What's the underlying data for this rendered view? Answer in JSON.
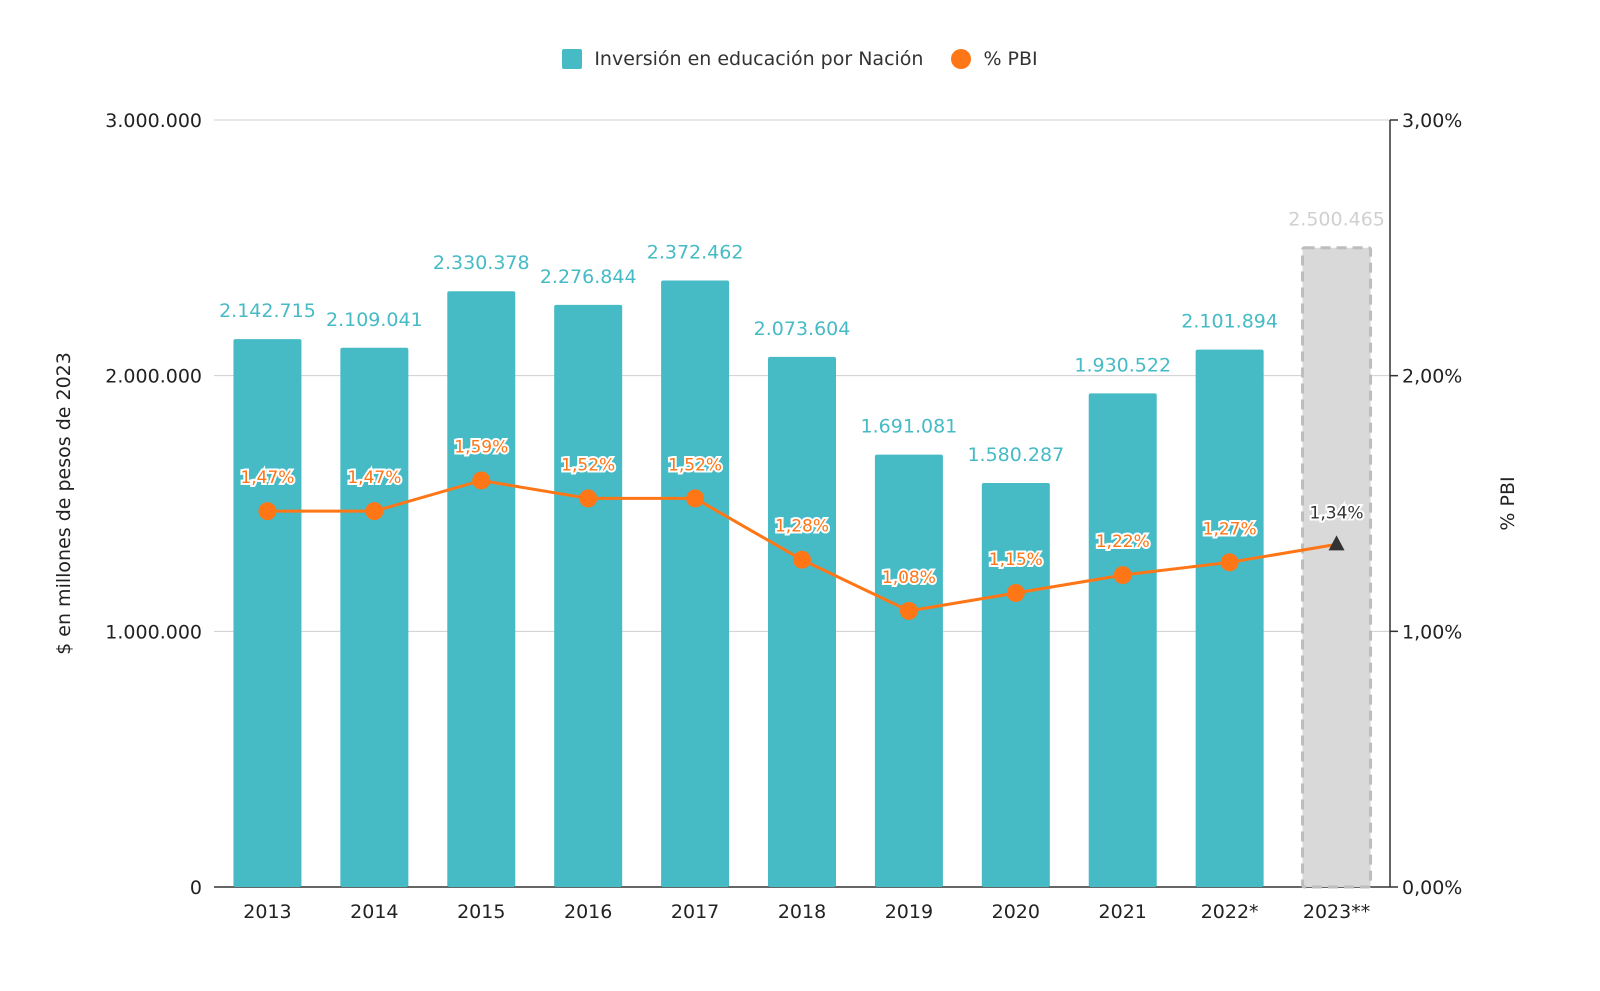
{
  "chart_data": {
    "type": "bar",
    "categories": [
      "2013",
      "2014",
      "2015",
      "2016",
      "2017",
      "2018",
      "2019",
      "2020",
      "2021",
      "2022*",
      "2023**"
    ],
    "series": [
      {
        "name": "Inversión en educación por Nación",
        "type": "bar",
        "axis": "left",
        "values": [
          2142715,
          2109041,
          2330378,
          2276844,
          2372462,
          2073604,
          1691081,
          1580287,
          1930522,
          2101894,
          2500465
        ],
        "labels": [
          "2.142.715",
          "2.109.041",
          "2.330.378",
          "2.276.844",
          "2.372.462",
          "2.073.604",
          "1.691.081",
          "1.580.287",
          "1.930.522",
          "2.101.894",
          "2.500.465"
        ],
        "projected_index": 10
      },
      {
        "name": "% PBI",
        "type": "line",
        "axis": "right",
        "values": [
          1.47,
          1.47,
          1.59,
          1.52,
          1.52,
          1.28,
          1.08,
          1.15,
          1.22,
          1.27,
          1.34
        ],
        "labels": [
          "1,47%",
          "1,47%",
          "1,59%",
          "1,52%",
          "1,52%",
          "1,28%",
          "1,08%",
          "1,15%",
          "1,22%",
          "1,27%",
          "1,34%"
        ]
      }
    ],
    "y_left": {
      "label": "$ en millones de pesos de 2023",
      "ylim": [
        0,
        3000000
      ],
      "ticks": [
        0,
        1000000,
        2000000,
        3000000
      ],
      "tick_labels": [
        "0",
        "1.000.000",
        "2.000.000",
        "3.000.000"
      ]
    },
    "y_right": {
      "label": "% PBI",
      "ylim": [
        0,
        3
      ],
      "ticks": [
        0,
        1,
        2,
        3
      ],
      "tick_labels": [
        "0,00%",
        "1,00%",
        "2,00%",
        "3,00%"
      ]
    },
    "grid": true,
    "legend_position": "top-center",
    "colors": {
      "bar": "#46bbc6",
      "bar_projected": "#d9d9d9",
      "line": "#ff7617",
      "projected_marker": "#333333",
      "bar_label": "#46bbc6",
      "bar_label_projected": "#d0d0d0"
    }
  }
}
